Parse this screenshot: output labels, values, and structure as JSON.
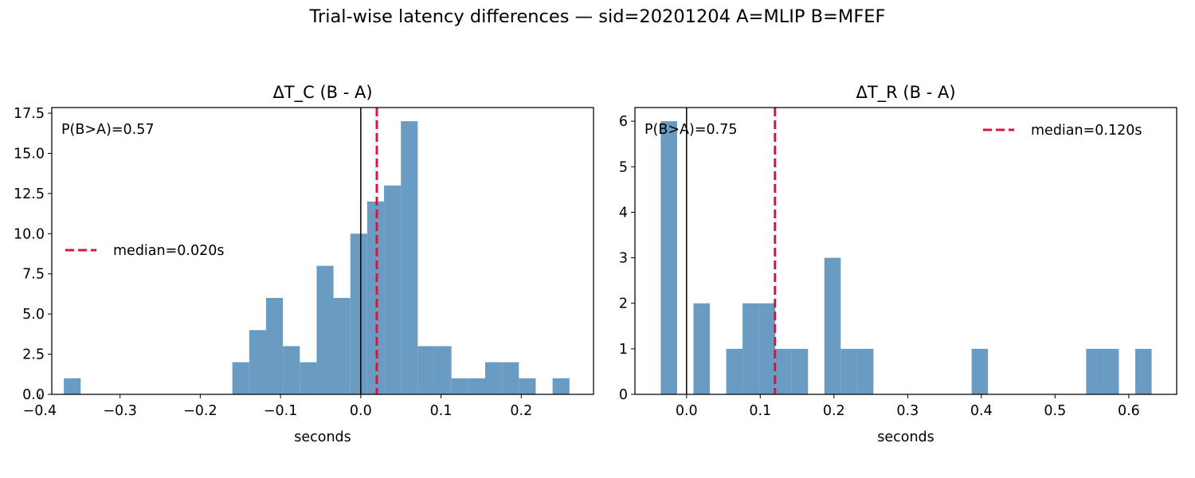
{
  "figure": {
    "title": "Trial-wise latency differences — sid=20201204  A=MLIP  B=MFEF"
  },
  "chart_data": [
    {
      "type": "bar",
      "title": "ΔT_C (B - A)",
      "xlabel": "seconds",
      "ylabel": "",
      "xlim": [
        -0.385,
        0.29
      ],
      "ylim": [
        0,
        17.85
      ],
      "xticks": [
        -0.4,
        -0.3,
        -0.2,
        -0.1,
        0.0,
        0.1,
        0.2
      ],
      "xtick_labels": [
        "−0.4",
        "−0.3",
        "−0.2",
        "−0.1",
        "0.0",
        "0.1",
        "0.2"
      ],
      "yticks": [
        0,
        2.5,
        5,
        7.5,
        10,
        12.5,
        15,
        17.5
      ],
      "ytick_labels": [
        "0.0",
        "2.5",
        "5.0",
        "7.5",
        "10.0",
        "12.5",
        "15.0",
        "17.5"
      ],
      "bin_start": -0.37,
      "bin_width": 0.021,
      "counts": [
        1,
        0,
        0,
        0,
        0,
        0,
        0,
        0,
        0,
        0,
        2,
        4,
        6,
        3,
        2,
        8,
        6,
        10,
        12,
        13,
        17,
        3,
        3,
        1,
        1,
        2,
        2,
        1,
        0,
        1
      ],
      "median": 0.02,
      "median_label": "median=0.020s",
      "annotation": "P(B>A)=0.57",
      "legend_loc": "center-left",
      "zero_line": 0.0,
      "bar_color": "#6a9bc3",
      "median_color": "#dc143c"
    },
    {
      "type": "bar",
      "title": "ΔT_R (B - A)",
      "xlabel": "seconds",
      "ylabel": "",
      "xlim": [
        -0.07,
        0.665
      ],
      "ylim": [
        0,
        6.3
      ],
      "xticks": [
        0.0,
        0.1,
        0.2,
        0.3,
        0.4,
        0.5,
        0.6
      ],
      "xtick_labels": [
        "0.0",
        "0.1",
        "0.2",
        "0.3",
        "0.4",
        "0.5",
        "0.6"
      ],
      "yticks": [
        0,
        1,
        2,
        3,
        4,
        5,
        6
      ],
      "ytick_labels": [
        "0",
        "1",
        "2",
        "3",
        "4",
        "5",
        "6"
      ],
      "bin_start": -0.035,
      "bin_width": 0.0222,
      "counts": [
        6,
        0,
        2,
        0,
        1,
        2,
        2,
        1,
        1,
        0,
        3,
        1,
        1,
        0,
        0,
        0,
        0,
        0,
        0,
        1,
        0,
        0,
        0,
        0,
        0,
        0,
        1,
        1,
        0,
        1
      ],
      "median": 0.12,
      "median_label": "median=0.120s",
      "annotation": "P(B>A)=0.75",
      "legend_loc": "upper-right",
      "zero_line": 0.0,
      "bar_color": "#6a9bc3",
      "median_color": "#dc143c"
    }
  ]
}
